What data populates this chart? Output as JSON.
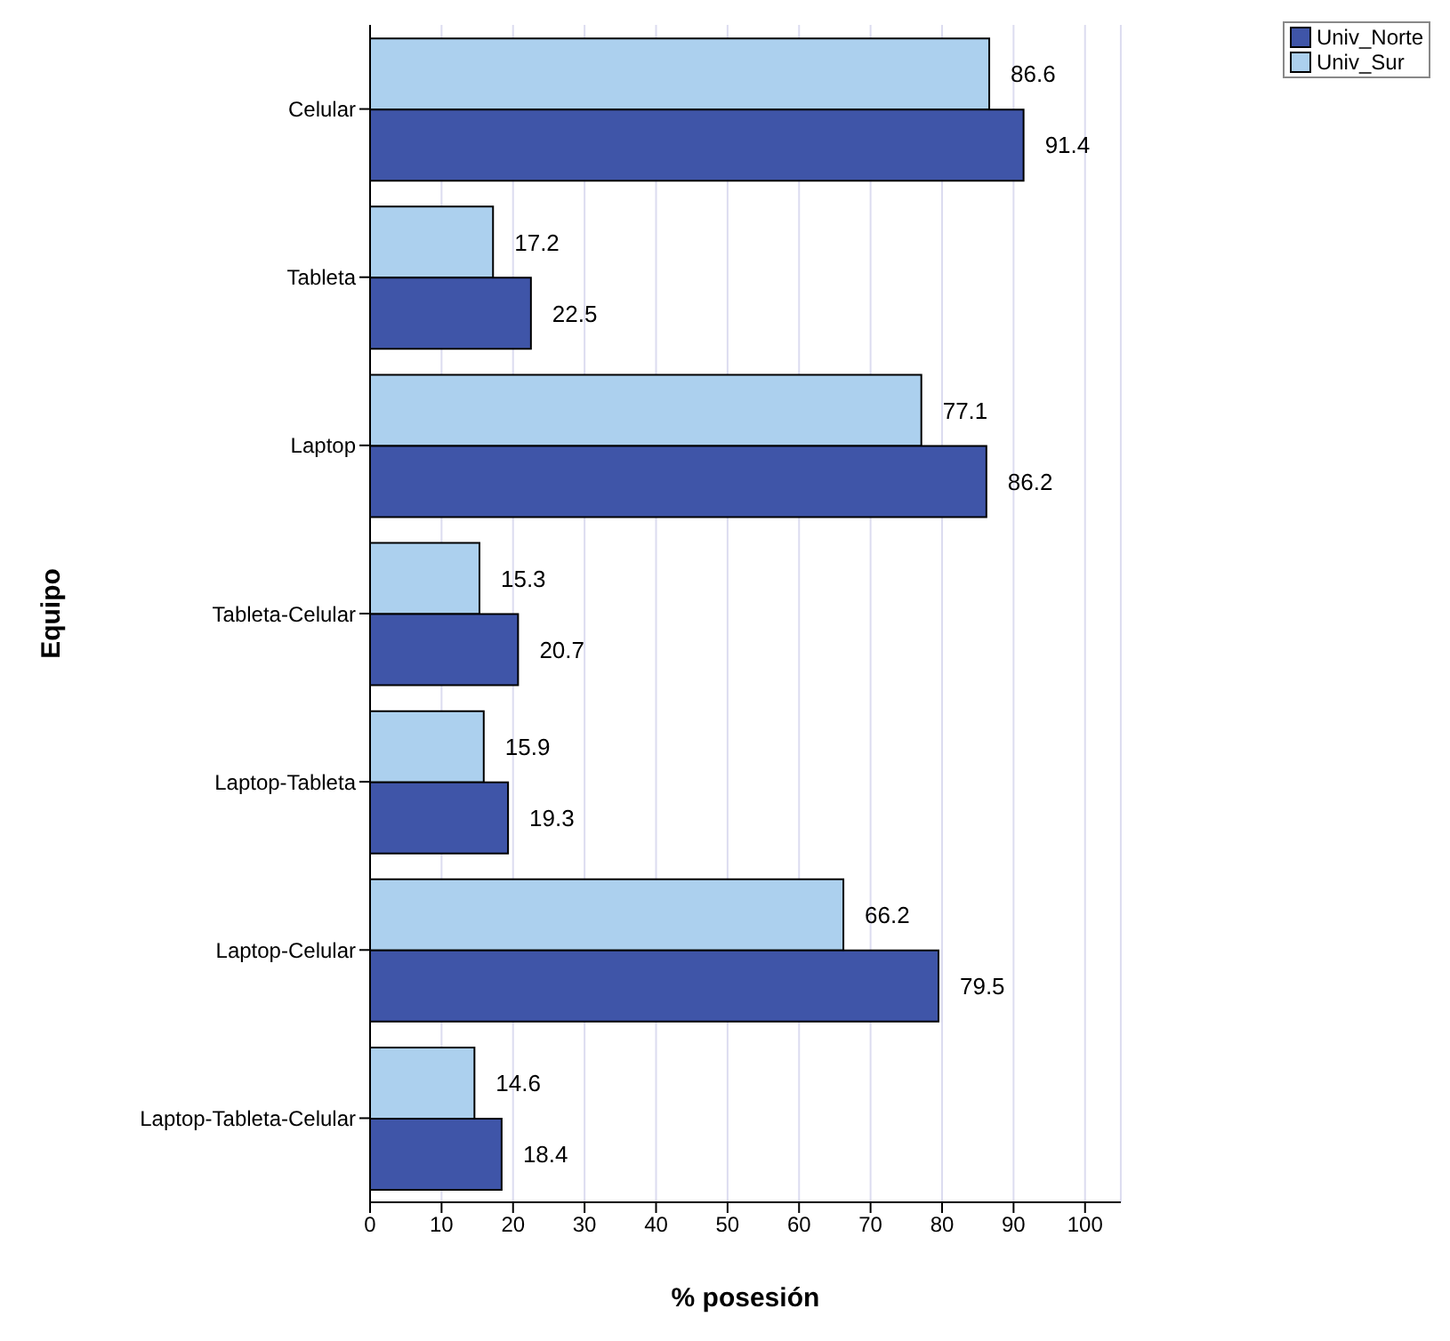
{
  "chart_data": {
    "type": "bar",
    "orientation": "horizontal",
    "xlabel": "% posesión",
    "ylabel": "Equipo",
    "categories": [
      "Celular",
      "Tableta",
      "Laptop",
      "Tableta-Celular",
      "Laptop-Tableta",
      "Laptop-Celular",
      "Laptop-Tableta-Celular"
    ],
    "series": [
      {
        "name": "Univ_Norte",
        "color": "#3f55a8",
        "values": [
          91.4,
          22.5,
          86.2,
          20.7,
          19.3,
          79.5,
          18.4
        ]
      },
      {
        "name": "Univ_Sur",
        "color": "#acd0ee",
        "values": [
          86.6,
          17.2,
          77.1,
          15.3,
          15.9,
          66.2,
          14.6
        ]
      }
    ],
    "xlim": [
      0,
      105
    ],
    "xticks": [
      0,
      10,
      20,
      30,
      40,
      50,
      60,
      70,
      80,
      90,
      100
    ],
    "grid": "x",
    "legend": "top right",
    "data_labels": true
  }
}
